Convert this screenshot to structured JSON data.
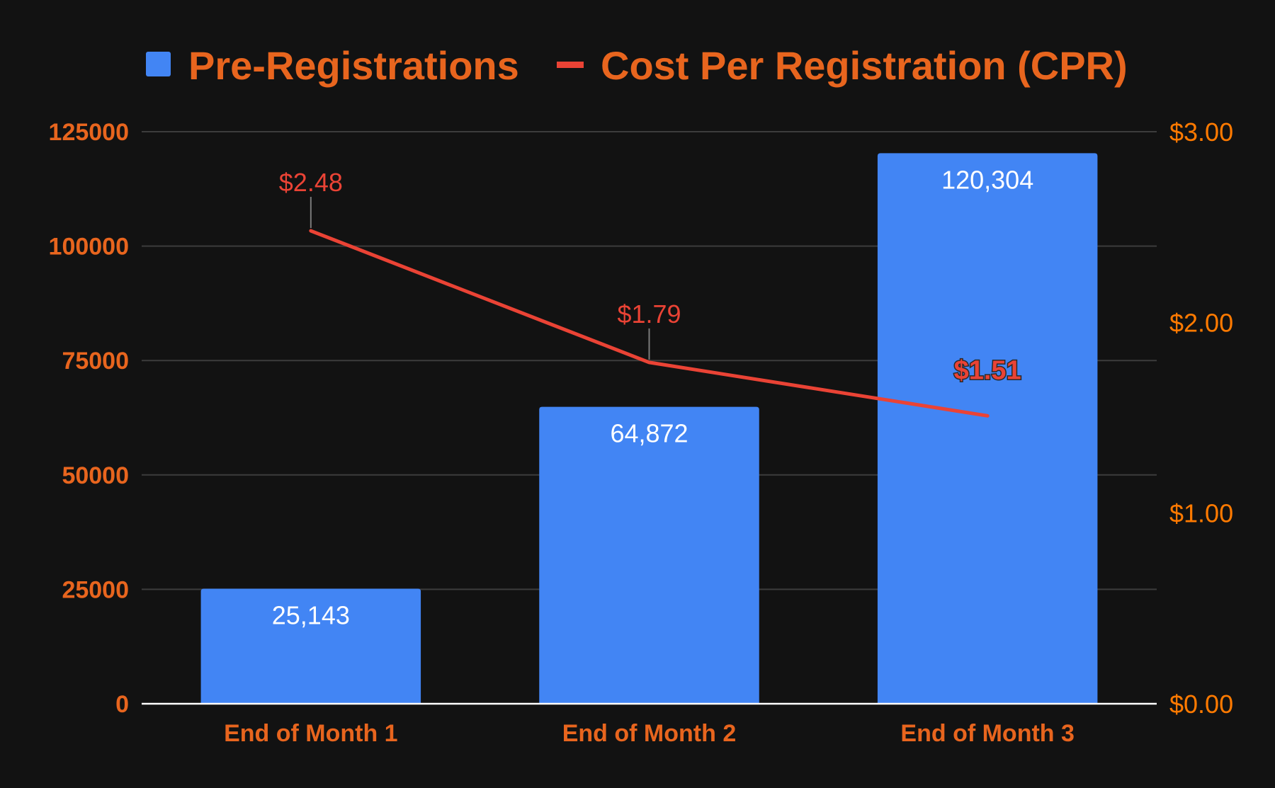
{
  "chart_data": {
    "type": "bar",
    "categories": [
      "End of Month 1",
      "End of Month 2",
      "End of Month 3"
    ],
    "series": [
      {
        "name": "Pre-Registrations",
        "kind": "bar",
        "axis": "left",
        "color": "#4285f4",
        "values": [
          25143,
          64872,
          120304
        ],
        "labels": [
          "25,143",
          "64,872",
          "120,304"
        ]
      },
      {
        "name": "Cost Per Registration (CPR)",
        "kind": "line",
        "axis": "right",
        "color": "#ea4335",
        "values": [
          2.48,
          1.79,
          1.51
        ],
        "labels": [
          "$2.48",
          "$1.79",
          "$1.51"
        ]
      }
    ],
    "y_left": {
      "ylim": [
        0,
        125000
      ],
      "ticks": [
        "0",
        "25000",
        "50000",
        "75000",
        "100000",
        "125000"
      ]
    },
    "y_right": {
      "ylim": [
        0,
        3
      ],
      "ticks": [
        "$0.00",
        "$1.00",
        "$2.00",
        "$3.00"
      ]
    },
    "legend_position": "top",
    "grid": true,
    "colors": {
      "background": "#121212",
      "text": "#e8651e",
      "grid": "#3c3c3c"
    }
  }
}
